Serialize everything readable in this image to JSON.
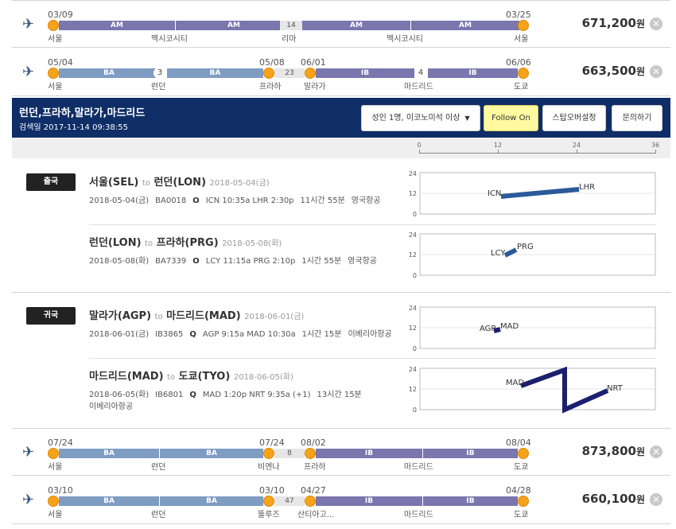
{
  "itineraries": [
    {
      "segments": [
        {
          "label": "AM"
        },
        {
          "label": "AM"
        },
        {
          "label": "AM"
        },
        {
          "label": "AM"
        }
      ],
      "dates": [
        "03/09",
        "03/25"
      ],
      "cities": [
        "서울",
        "멕시코시티",
        "리마",
        "멕시코시티",
        "서울"
      ],
      "layover": "14",
      "price": "671,200",
      "currency": "원"
    },
    {
      "segments": [
        {
          "label": "BA"
        },
        {
          "label": "BA"
        },
        {
          "label": "IB"
        },
        {
          "label": "IB"
        }
      ],
      "dates": [
        "05/04",
        "05/08",
        "06/01",
        "06/06"
      ],
      "cities": [
        "서울",
        "런던",
        "프라하",
        "말라가",
        "마드리드",
        "도쿄"
      ],
      "stops": [
        "3",
        "4"
      ],
      "layover": "23",
      "price": "663,500",
      "currency": "원"
    },
    {
      "segments": [
        {
          "label": "BA"
        },
        {
          "label": "BA"
        },
        {
          "label": "IB"
        },
        {
          "label": "IB"
        }
      ],
      "dates": [
        "07/24",
        "07/24",
        "08/02",
        "08/04"
      ],
      "cities": [
        "서울",
        "런던",
        "비엔나",
        "프라하",
        "마드리드",
        "도쿄"
      ],
      "layover": "8",
      "price": "873,800",
      "currency": "원"
    },
    {
      "segments": [
        {
          "label": "BA"
        },
        {
          "label": "BA"
        },
        {
          "label": "IB"
        },
        {
          "label": "IB"
        }
      ],
      "dates": [
        "03/10",
        "03/10",
        "04/27",
        "04/28"
      ],
      "cities": [
        "서울",
        "런던",
        "뚤루즈",
        "산티아고...",
        "마드리드",
        "도쿄"
      ],
      "layover": "47",
      "price": "660,100",
      "currency": "원"
    }
  ],
  "detail": {
    "title": "런던,프라하,말라가,마드리드",
    "search_date": "검색일 2017-11-14 09:38:55",
    "passenger_select": "성인 1명, 이코노미석 이상",
    "follow_button": "Follow On",
    "stopover_button": "스탑오버설정",
    "inquiry_button": "문의하기",
    "axis_ticks": [
      "0",
      "12",
      "24",
      "36"
    ]
  },
  "outbound": {
    "badge": "출국",
    "legs": [
      {
        "from": "서울(SEL)",
        "to_word": "to",
        "to": "런던(LON)",
        "date": "2018-05-04(금)",
        "meta_date": "2018-05-04(금)",
        "flight": "BA0018",
        "class": "O",
        "times": "ICN 10:35a LHR 2:30p",
        "duration": "11시간 55분",
        "airline": "영국항공",
        "chart": {
          "y_ticks": [
            "24",
            "12",
            "0"
          ],
          "from_code": "ICN",
          "to_code": "LHR"
        }
      },
      {
        "from": "런던(LON)",
        "to_word": "to",
        "to": "프라하(PRG)",
        "date": "2018-05-08(화)",
        "meta_date": "2018-05-08(화)",
        "flight": "BA7339",
        "class": "O",
        "times": "LCY 11:15a PRG 2:10p",
        "duration": "1시간 55분",
        "airline": "영국항공",
        "chart": {
          "y_ticks": [
            "24",
            "12",
            "0"
          ],
          "from_code": "LCY",
          "to_code": "PRG"
        }
      }
    ]
  },
  "inbound": {
    "badge": "귀국",
    "legs": [
      {
        "from": "말라가(AGP)",
        "to_word": "to",
        "to": "마드리드(MAD)",
        "date": "2018-06-01(금)",
        "meta_date": "2018-06-01(금)",
        "flight": "IB3865",
        "class": "Q",
        "times": "AGP 9:15a MAD 10:30a",
        "duration": "1시간 15분",
        "airline": "이베리아항공",
        "chart": {
          "y_ticks": [
            "24",
            "12",
            "0"
          ],
          "from_code": "AGP",
          "to_code": "MAD"
        }
      },
      {
        "from": "마드리드(MAD)",
        "to_word": "to",
        "to": "도쿄(TYO)",
        "date": "2018-06-05(화)",
        "meta_date": "2018-06-05(화)",
        "flight": "IB6801",
        "class": "Q",
        "times": "MAD 1:20p NRT 9:35a (+1)",
        "duration": "13시간 15분",
        "airline": "이베리아항공",
        "chart": {
          "y_ticks": [
            "24",
            "12",
            "0"
          ],
          "from_code": "MAD",
          "to_code": "NRT"
        }
      }
    ]
  },
  "colors": {
    "header_bg": "#0f2d66",
    "ba_segment": "#7f9cc3",
    "ib_segment": "#7a76ae",
    "dot": "#f7a21b",
    "outbound_line": "#2b5a9a",
    "inbound_line": "#1c1f6e"
  }
}
